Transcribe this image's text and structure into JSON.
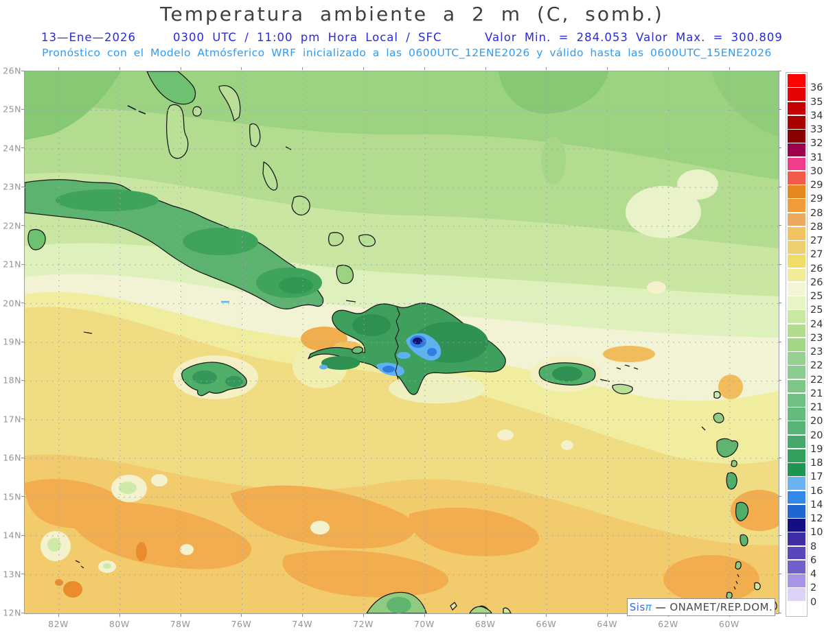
{
  "title": "Temperatura ambiente a 2 m (C, somb.)",
  "header": {
    "date": "13—Ene—2026",
    "time_info": "0300 UTC / 11:00 pm Hora Local / SFC",
    "minmax": "Valor Min. = 284.053   Valor Max. = 300.809",
    "forecast_line": "Pronóstico con el Modelo Atmósferico WRF inicializado a las 0600UTC_12ENE2026 y válido hasta las  0600UTC_15ENE2026"
  },
  "map": {
    "lat_labels": [
      "26N",
      "25N",
      "24N",
      "23N",
      "22N",
      "21N",
      "20N",
      "19N",
      "18N",
      "17N",
      "16N",
      "15N",
      "14N",
      "13N",
      "12N"
    ],
    "lon_labels": [
      "82W",
      "80W",
      "78W",
      "76W",
      "74W",
      "72W",
      "70W",
      "68W",
      "66W",
      "64W",
      "62W",
      "60W"
    ],
    "region": "Caribbean / Antillas"
  },
  "colorbar": {
    "labels": [
      "36",
      "35",
      "34",
      "33",
      "32",
      "31.5",
      "30.7",
      "29.7",
      "29",
      "28.5",
      "28",
      "27.5",
      "27",
      "26.5",
      "26",
      "25.5",
      "25",
      "24",
      "23.5",
      "23",
      "22.5",
      "22",
      "21.5",
      "21",
      "20.5",
      "20",
      "19",
      "18",
      "17",
      "16",
      "14",
      "12",
      "10",
      "8",
      "6",
      "4",
      "2",
      "0"
    ],
    "colors": [
      "#fb0404",
      "#e40202",
      "#c70101",
      "#a90000",
      "#8b0000",
      "#9e004e",
      "#f23c8c",
      "#f25a4a",
      "#e5861f",
      "#f09c3a",
      "#eaa95b",
      "#f2c360",
      "#eed06e",
      "#f0dc66",
      "#f2ec9a",
      "#f4f4d6",
      "#e6f4c6",
      "#c9e8a2",
      "#b2dc8d",
      "#a3d687",
      "#97d191",
      "#8bcc8e",
      "#7ec688",
      "#71c083",
      "#65ba7d",
      "#58b377",
      "#46a96b",
      "#33a05e",
      "#1f9350",
      "#6bb2f2",
      "#3388e8",
      "#1f66d0",
      "#140e82",
      "#3f2da6",
      "#5846ba",
      "#7060cc",
      "#a893e4",
      "#dcd3f6",
      "#ffffff"
    ],
    "units": "C"
  },
  "credit": {
    "sis": "Sis",
    "pi": "π",
    "dash": "— ",
    "org": "ONAMET/REP.DOM."
  }
}
